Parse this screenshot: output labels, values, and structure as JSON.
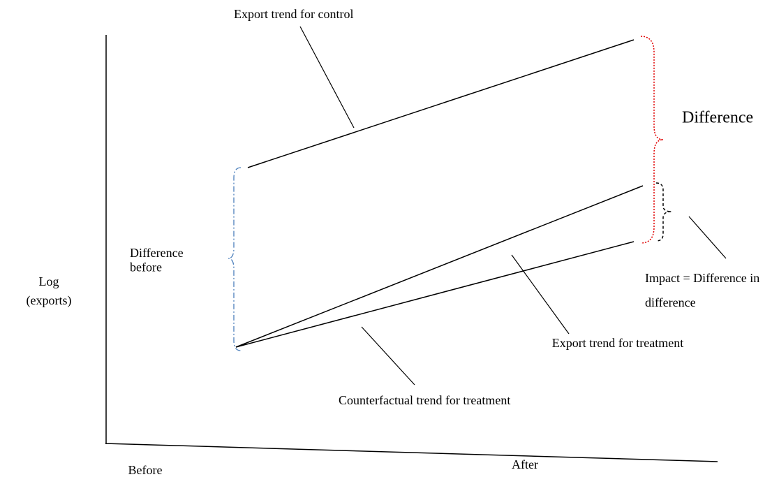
{
  "title": "Export trend for control",
  "difference_label": "Difference",
  "y_label": [
    "Log",
    "(exports)"
  ],
  "difference_before": [
    "Difference",
    "before"
  ],
  "impact_label": [
    "Impact = Difference in",
    "difference"
  ],
  "treatment_label": "Export trend for treatment",
  "counterfactual_label": "Counterfactual trend for treatment",
  "x_labels": [
    "Before",
    "After"
  ]
}
